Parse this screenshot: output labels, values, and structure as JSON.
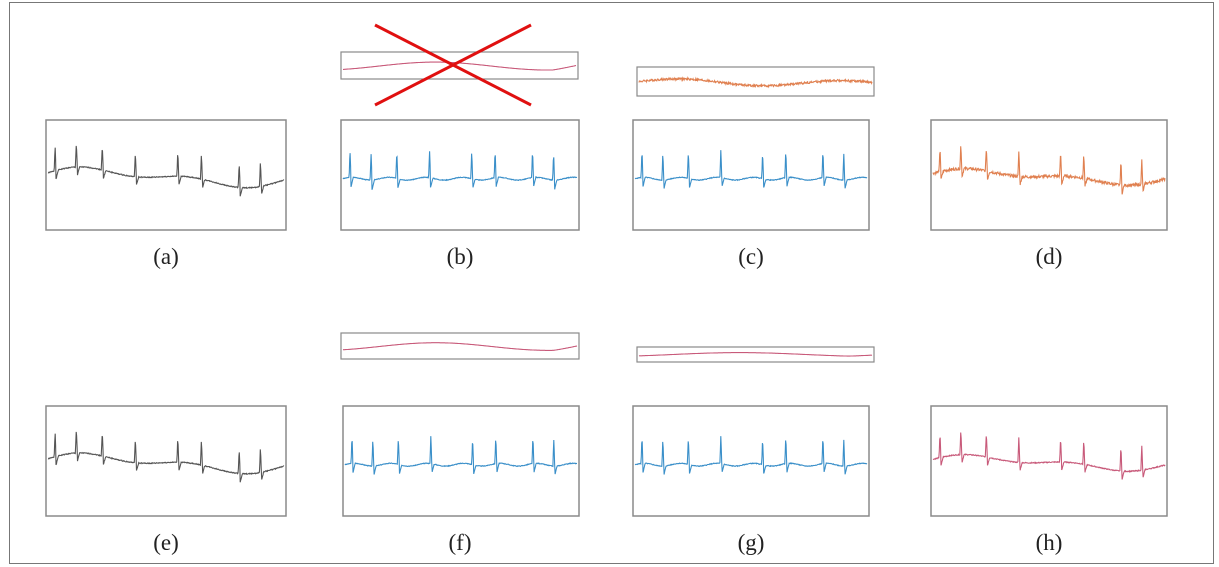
{
  "colors": {
    "ecg": "#555555",
    "clean": "#3a8fc9",
    "noise": "#e08050",
    "baseline": "#c85a7a",
    "cross": "#e01010",
    "box": "#8a8a8a"
  },
  "panels": [
    {
      "id": "a",
      "label": "(a)",
      "signal": "ecg",
      "top_signal": "none",
      "crossed": false
    },
    {
      "id": "b",
      "label": "(b)",
      "signal": "clean",
      "top_signal": "baseline",
      "crossed": true
    },
    {
      "id": "c",
      "label": "(c)",
      "signal": "clean",
      "top_signal": "noise",
      "crossed": false
    },
    {
      "id": "d",
      "label": "(d)",
      "signal": "noise",
      "top_signal": "none",
      "crossed": false
    },
    {
      "id": "e",
      "label": "(e)",
      "signal": "ecg",
      "top_signal": "none",
      "crossed": false
    },
    {
      "id": "f",
      "label": "(f)",
      "signal": "clean",
      "top_signal": "baseline",
      "crossed": false
    },
    {
      "id": "g",
      "label": "(g)",
      "signal": "clean",
      "top_signal": "baseline",
      "crossed": false
    },
    {
      "id": "h",
      "label": "(h)",
      "signal": "baseline",
      "top_signal": "none",
      "crossed": false
    }
  ]
}
